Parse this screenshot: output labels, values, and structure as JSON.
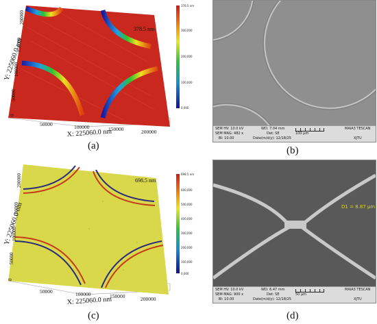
{
  "panels": {
    "a": {
      "caption": "(a)",
      "max_height": "378.5 nm",
      "x_axis_title": "X: 225060.0 nm",
      "y_axis_title": "Y: 225060.0 nm",
      "x_ticks": [
        "50000",
        "100000",
        "150000",
        "200000"
      ],
      "y_ticks": [
        "200000",
        "150000",
        "100000",
        "50000",
        "0"
      ],
      "colorbar_top": "378.5 nm",
      "colorbar_ticks": [
        "300,000",
        "200,000",
        "100,000",
        "0,000"
      ]
    },
    "b": {
      "caption": "(b)",
      "sem": {
        "hv": "SEM HV: 10.0 kV",
        "wd": "WD: 7.04 mm",
        "brand": "MAIA3 TESCAN",
        "mag": "SEM MAG: 482 x",
        "det": "Det: SE",
        "scale": "100 μm",
        "bi": "BI: 10.00",
        "date": "Date(m/d/y): 12/18/25",
        "org": "XJTU"
      }
    },
    "c": {
      "caption": "(c)",
      "max_height": "698.5 nm",
      "x_axis_title": "X: 225060.0 nm",
      "y_axis_title": "Y: 225060.0 nm",
      "x_ticks": [
        "50000",
        "100000",
        "150000",
        "200000"
      ],
      "y_ticks": [
        "200000",
        "150000",
        "100000",
        "50000",
        "0"
      ],
      "colorbar_top": "698.5 nm",
      "colorbar_ticks": [
        "600,000",
        "500,000",
        "400,000",
        "300,000",
        "200,000",
        "100,000",
        "0,000"
      ]
    },
    "d": {
      "caption": "(d)",
      "measurement": "D1 = 8.87 μm",
      "sem": {
        "hv": "SEM HV: 10.0 kV",
        "wd": "WD: 6.47 mm",
        "brand": "MAIA3 TESCAN",
        "mag": "SEM MAG: 900 x",
        "det": "Det: SE",
        "scale": "50 μm",
        "bi": "BI: 10.00",
        "date": "Date(m/d/y): 12/18/25",
        "org": "XJTU"
      }
    }
  },
  "colors": {
    "afm_a_surface": "#c8281e",
    "afm_c_surface": "#d9d84a",
    "sem_b_background": "#8f8f8f",
    "sem_d_background": "#595959",
    "measure_text": "#e6d800"
  }
}
